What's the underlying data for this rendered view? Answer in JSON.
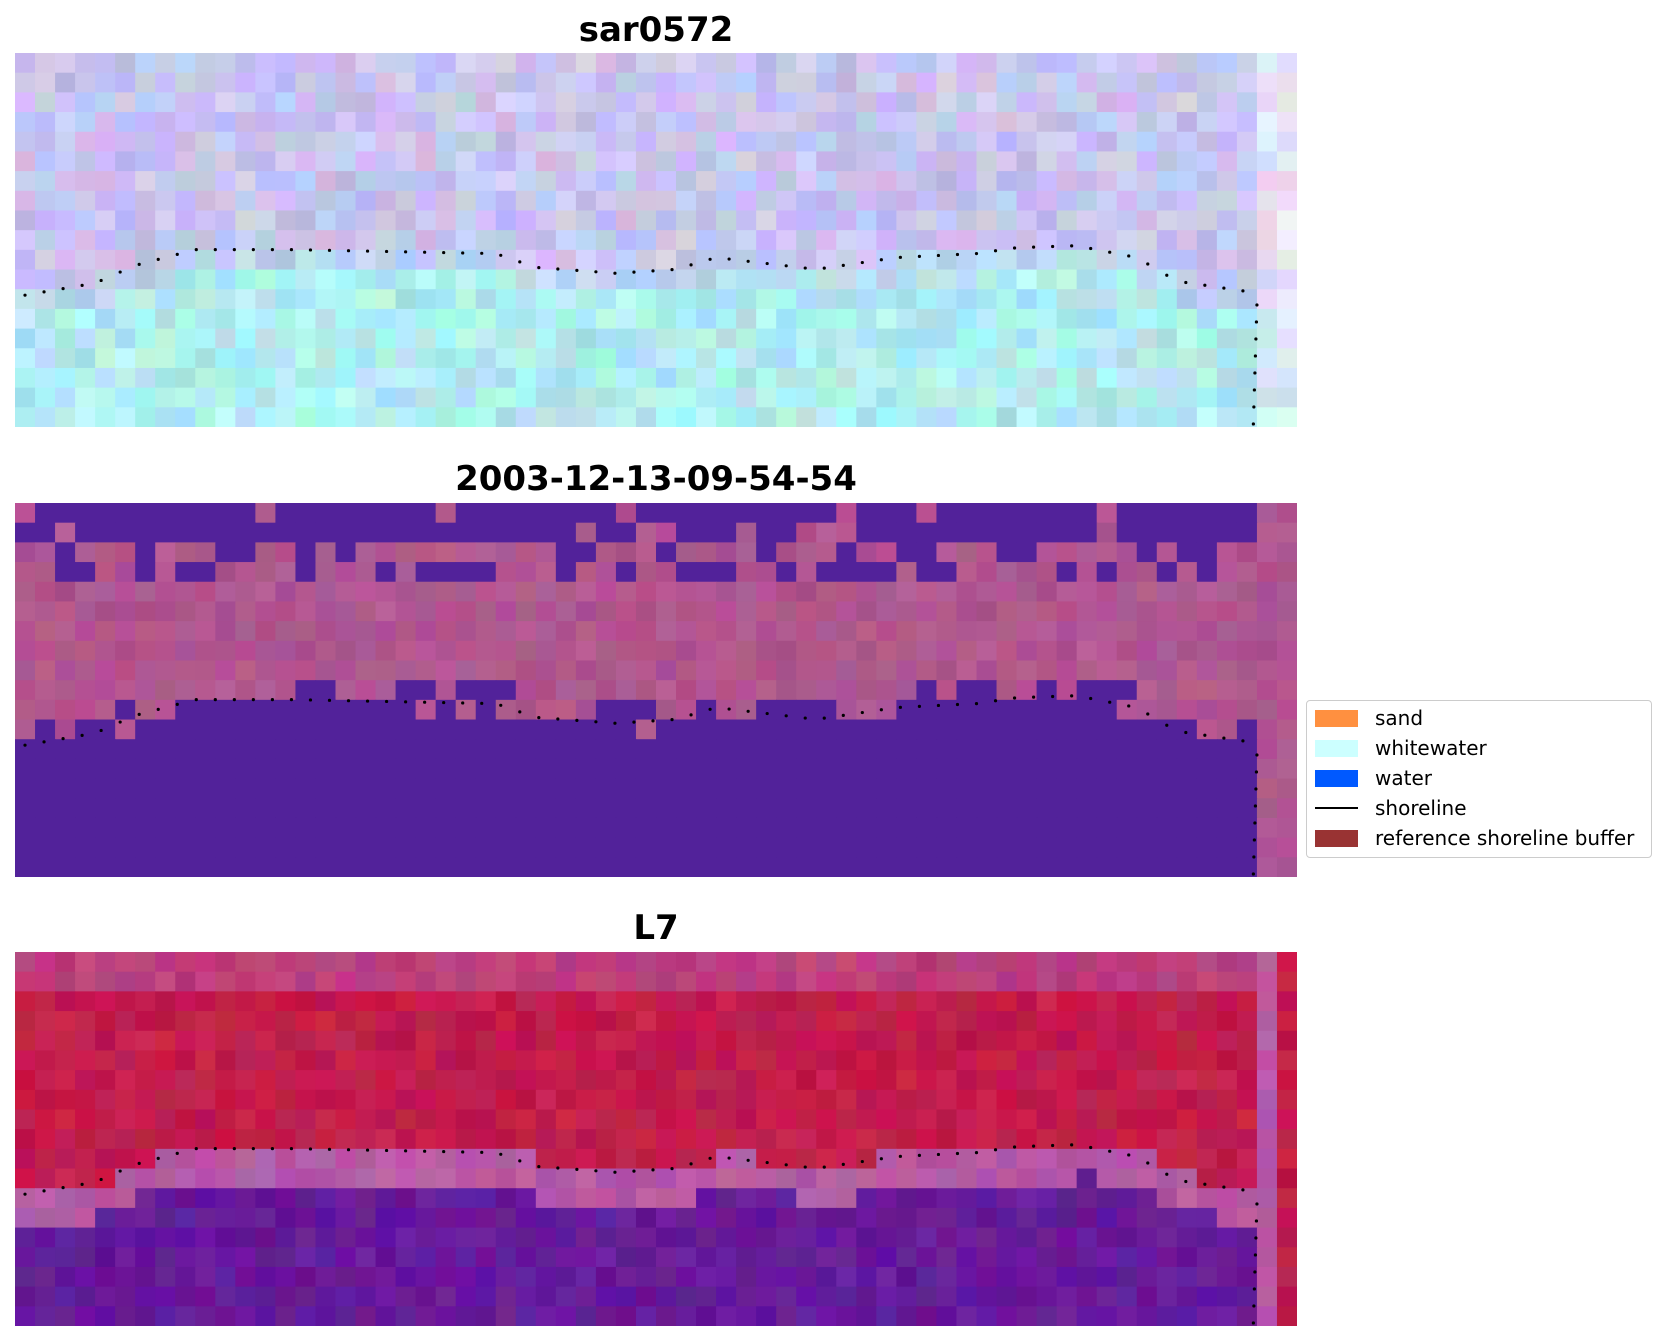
{
  "panels": [
    {
      "title": "sar0572",
      "image_name": "sar-composite-image"
    },
    {
      "title": "2003-12-13-09-54-54",
      "image_name": "classified-image"
    },
    {
      "title": "L7",
      "image_name": "landsat7-false-color-image"
    }
  ],
  "legend": {
    "items": [
      {
        "label": "sand",
        "color": "#ff9040",
        "kind": "patch"
      },
      {
        "label": "whitewater",
        "color": "#ccffff",
        "kind": "patch"
      },
      {
        "label": "water",
        "color": "#0059ff",
        "kind": "patch"
      },
      {
        "label": "shoreline",
        "color": "#000000",
        "kind": "line"
      },
      {
        "label": "reference shoreline buffer",
        "color": "#993333",
        "kind": "patch"
      }
    ]
  },
  "colors": {
    "sar_upper": "#c8c4ee",
    "sar_lower": "#b0ecef",
    "class_dark": "#52229a",
    "class_pink": "#b0568f",
    "l7_red": "#c21d4c",
    "l7_purple": "#661a99",
    "l7_band": "#b65aa6"
  }
}
